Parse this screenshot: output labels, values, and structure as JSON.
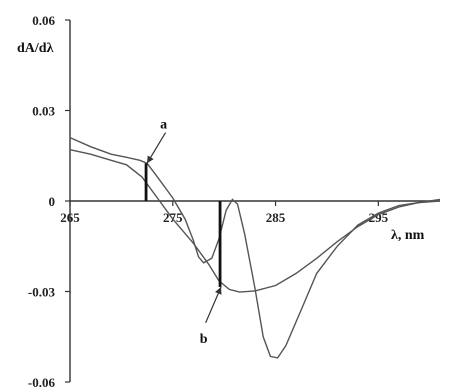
{
  "chart_data": {
    "type": "line",
    "ylabel": "dA/dλ",
    "xlabel": "λ, nm",
    "xlim": [
      265,
      301
    ],
    "ylim": [
      -0.06,
      0.06
    ],
    "x_ticks": [
      265,
      275,
      285,
      295
    ],
    "y_ticks": [
      {
        "value": 0.06,
        "label": "0.06"
      },
      {
        "value": 0.03,
        "label": "0.03"
      },
      {
        "value": 0,
        "label": "0"
      },
      {
        "value": -0.03,
        "label": "-0.03"
      },
      {
        "value": -0.06,
        "label": "-0.06"
      }
    ],
    "grid": false,
    "series": [
      {
        "points": [
          [
            265,
            0.021
          ],
          [
            267,
            0.018
          ],
          [
            269,
            0.0155
          ],
          [
            270.5,
            0.0145
          ],
          [
            271.8,
            0.0135
          ],
          [
            272.5,
            0.0125
          ],
          [
            273.5,
            0.008
          ],
          [
            275,
            0.001
          ],
          [
            276.2,
            -0.006
          ],
          [
            277,
            -0.013
          ],
          [
            277.5,
            -0.0185
          ],
          [
            278,
            -0.0205
          ],
          [
            278.8,
            -0.019
          ],
          [
            279.5,
            -0.0125
          ],
          [
            280.2,
            -0.003
          ],
          [
            280.8,
            0.0005
          ],
          [
            281.3,
            -0.001
          ],
          [
            282,
            -0.011
          ],
          [
            283,
            -0.029
          ],
          [
            283.8,
            -0.045
          ],
          [
            284.5,
            -0.0515
          ],
          [
            285.2,
            -0.052
          ],
          [
            286,
            -0.048
          ],
          [
            287.5,
            -0.036
          ],
          [
            289,
            -0.024
          ],
          [
            291,
            -0.015
          ],
          [
            293,
            -0.008
          ],
          [
            295,
            -0.004
          ],
          [
            297,
            -0.0015
          ],
          [
            299,
            -0.0005
          ],
          [
            301,
            0
          ]
        ]
      },
      {
        "points": [
          [
            265,
            0.017
          ],
          [
            267,
            0.0155
          ],
          [
            269,
            0.0135
          ],
          [
            270.5,
            0.012
          ],
          [
            272,
            0.008
          ],
          [
            273.5,
            0.001
          ],
          [
            275,
            -0.006
          ],
          [
            277,
            -0.014
          ],
          [
            278.5,
            -0.021
          ],
          [
            279.5,
            -0.0265
          ],
          [
            280.5,
            -0.0293
          ],
          [
            281.5,
            -0.0302
          ],
          [
            283,
            -0.0298
          ],
          [
            285,
            -0.028
          ],
          [
            287,
            -0.024
          ],
          [
            289,
            -0.019
          ],
          [
            291,
            -0.0135
          ],
          [
            293,
            -0.0085
          ],
          [
            295,
            -0.0045
          ],
          [
            297,
            -0.002
          ],
          [
            299,
            -0.0005
          ],
          [
            301,
            0.0005
          ]
        ]
      }
    ],
    "markers": [
      {
        "label": "a",
        "x": 272.4,
        "y_top": 0.0125,
        "y_bottom": 0,
        "label_at": [
          274.3,
          0.024
        ]
      },
      {
        "label": "b",
        "x": 279.6,
        "y_top": 0,
        "y_bottom": -0.0285,
        "label_at": [
          278.2,
          -0.045
        ]
      }
    ]
  }
}
